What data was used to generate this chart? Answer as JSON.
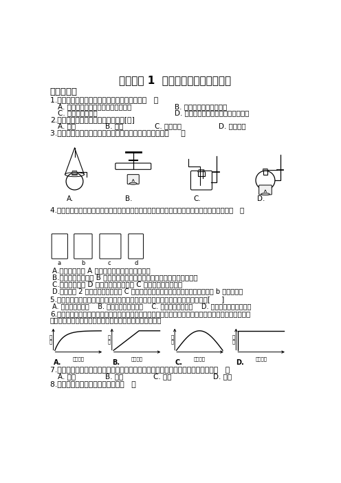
{
  "title": "实验活动 1  氧气的实验室制取与性质",
  "background": "#ffffff",
  "section1": "一、选择题",
  "q1": "1.下列关于氧气物理性质的描述中，错误的是（   ）",
  "q1a": "A. 通常情况下氧气是无色无味的气体",
  "q1b": "B. 液态是没有颜色的液体",
  "q1c": "C. 氧气不易溶于水",
  "q1d": "D. 相同条件下氧气的密度比空气略大",
  "q2": "2.空气中能使食物变质的主要气体是[　]",
  "q2a": "A. 氮气",
  "q2b": "B. 氧气",
  "q2c": "C. 二氧化碳",
  "q2d": "D. 稀有气体",
  "q3": "3.实验室加热高閔酸钒制氧气，可直接采用的发生装置是（     ）",
  "q4": "4.育才中学化学兴趣小组的同学准备用下图装置在实验室制取并收集氧气，下列说法错误的是（   ）",
  "q4a": "A.小伟认为装置 A 加热前试管内的物质是纯净物",
  "q4b": "B.小明认为若将装置 B 中的长颈漏斗换成分液漏斗就可以控制反应的速率",
  "q4c": "C.小芳认为装置 D 收集到的氧气比装置 C 收集到的氧气更纯净",
  "q4d": "D.小华用图 2 中的装置来代替装置 C 收集氧气时，应将带火星的小木条放在导气管 b 处进行验满",
  "q5": "5.实验室采用排水法收集氧气时，需将导气管伸入盛满水的集气瓶，这个操作应在[     ]",
  "q5a": "A. 加热固体药品前",
  "q5b": "B. 与加热固体药品同时",
  "q5c": "C. 开始有气泡放出时",
  "q5d": "D. 气泡连续并均匀放出时",
  "q6": "6.如图是实验室用过氧化氢溶液与二氧化锶混合制取氧气时，生成氧气的质量随时间的变化关系图，其中",
  "q6b": "正确的是（横轴表示反应时间，纵轴表示生成氧气的质量）",
  "q7": "7.要除去密闭容器内空气中的氧气，并不混入其他气体，在其中燃烧的可燃物应选（   ）",
  "q7a": "A. 木炭",
  "q7b": "B. 鐵丝",
  "q7c": "C. 镁条",
  "q7d": "D. 红磷",
  "q8": "8.如图所示的实验操作中正确的是（   ）"
}
